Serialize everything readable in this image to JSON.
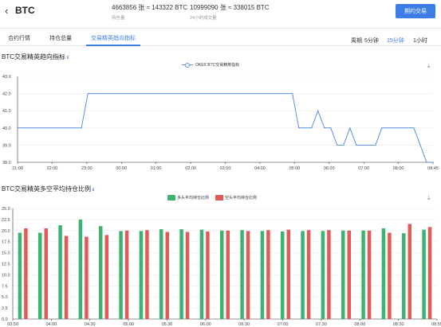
{
  "header": {
    "back_icon": "chevron-left-icon",
    "title": "BTC",
    "stat1_value": "4663856 张 ≈ 143322 BTC",
    "stat1_label": "持仓量",
    "stat2_value": "10999090 张 ≈ 338015 BTC",
    "stat2_label": "24小时成交量",
    "trade_button": "期约交易"
  },
  "tabs": [
    {
      "label": "合约行情"
    },
    {
      "label": "持仓总量"
    },
    {
      "label": "交易精英趋向指标",
      "active": true
    }
  ],
  "periods": {
    "label": "周期",
    "items": [
      {
        "label": "5分钟"
      },
      {
        "label": "15分钟",
        "active": true
      },
      {
        "label": "1小时"
      }
    ]
  },
  "chart1_section": {
    "title": "BTC交易精英趋向指标",
    "info_icon": "info-icon",
    "download_icon": "download-icon"
  },
  "chart2_section": {
    "title": "BTC交易精英多空平均持仓比例",
    "info_icon": "info-icon",
    "download_icon": "download-icon"
  },
  "colors": {
    "accent": "#3d7de5",
    "line": "#5a8ee8",
    "long": "#3cb371",
    "short": "#e25a57"
  },
  "chart_data": [
    {
      "type": "line",
      "title": "",
      "series": [
        {
          "name": "OKEX BTC交易精英指标",
          "values": [
            40.0,
            40.0,
            40.0,
            40.0,
            40.0,
            40.0,
            40.0,
            40.0,
            40.0,
            40.0,
            40.0,
            42.0,
            42.0,
            42.0,
            42.0,
            42.0,
            42.0,
            42.0,
            42.0,
            42.0,
            42.0,
            42.0,
            42.0,
            42.0,
            42.0,
            42.0,
            42.0,
            42.0,
            42.0,
            42.0,
            42.0,
            42.0,
            42.0,
            42.0,
            42.0,
            42.0,
            42.0,
            42.0,
            42.0,
            42.0,
            42.0,
            42.0,
            42.0,
            42.0,
            40.0,
            40.0,
            40.0,
            41.0,
            40.0,
            40.0,
            39.0,
            39.0,
            40.0,
            39.0,
            39.0,
            39.0,
            39.0,
            40.0,
            40.0,
            40.0,
            40.0,
            40.0,
            40.0,
            39.0,
            38.0,
            38.0
          ]
        }
      ],
      "x_ticks": [
        "21:00",
        "22:00",
        "23:00",
        "00:00",
        "01:00",
        "02:00",
        "03:00",
        "04:00",
        "05:00",
        "06:00",
        "07:00",
        "08:00",
        "08:45"
      ],
      "y_ticks": [
        "38.0",
        "39.0",
        "40.0",
        "41.0",
        "42.0",
        "43.0"
      ],
      "ylim": [
        38,
        43
      ],
      "grid": true,
      "legend": "top-center"
    },
    {
      "type": "bar",
      "title": "",
      "categories": [
        "03:50",
        "04:00",
        "04:15",
        "04:30",
        "04:45",
        "05:00",
        "05:15",
        "05:30",
        "05:45",
        "06:00",
        "06:15",
        "06:30",
        "06:45",
        "07:00",
        "07:15",
        "07:30",
        "07:45",
        "08:00",
        "08:15",
        "08:30",
        "08:45"
      ],
      "series": [
        {
          "name": "多头平均持仓比例",
          "values": [
            19.5,
            19.5,
            21.2,
            22.5,
            21.0,
            19.9,
            19.9,
            20.3,
            20.3,
            20.2,
            20.0,
            20.1,
            19.9,
            19.8,
            19.9,
            19.9,
            20.0,
            20.0,
            20.5,
            19.4,
            20.2
          ]
        },
        {
          "name": "空头平均持仓比例",
          "values": [
            20.5,
            20.5,
            18.8,
            18.6,
            19.0,
            20.0,
            20.1,
            19.7,
            19.7,
            19.8,
            20.0,
            19.9,
            20.1,
            20.2,
            20.1,
            20.1,
            20.0,
            20.0,
            19.5,
            21.5,
            20.8
          ]
        }
      ],
      "x_ticks": [
        "03:50",
        "04:00",
        "04:30",
        "05:00",
        "05:30",
        "06:00",
        "06:30",
        "07:00",
        "07:30",
        "08:00",
        "08:30",
        "08:55"
      ],
      "y_ticks": [
        "0.0",
        "2.5",
        "5.0",
        "7.5",
        "10.0",
        "12.5",
        "15.0",
        "17.5",
        "20.0",
        "22.5",
        "25.0"
      ],
      "ylim": [
        0,
        25
      ],
      "grid": true,
      "legend": "top-center"
    }
  ]
}
